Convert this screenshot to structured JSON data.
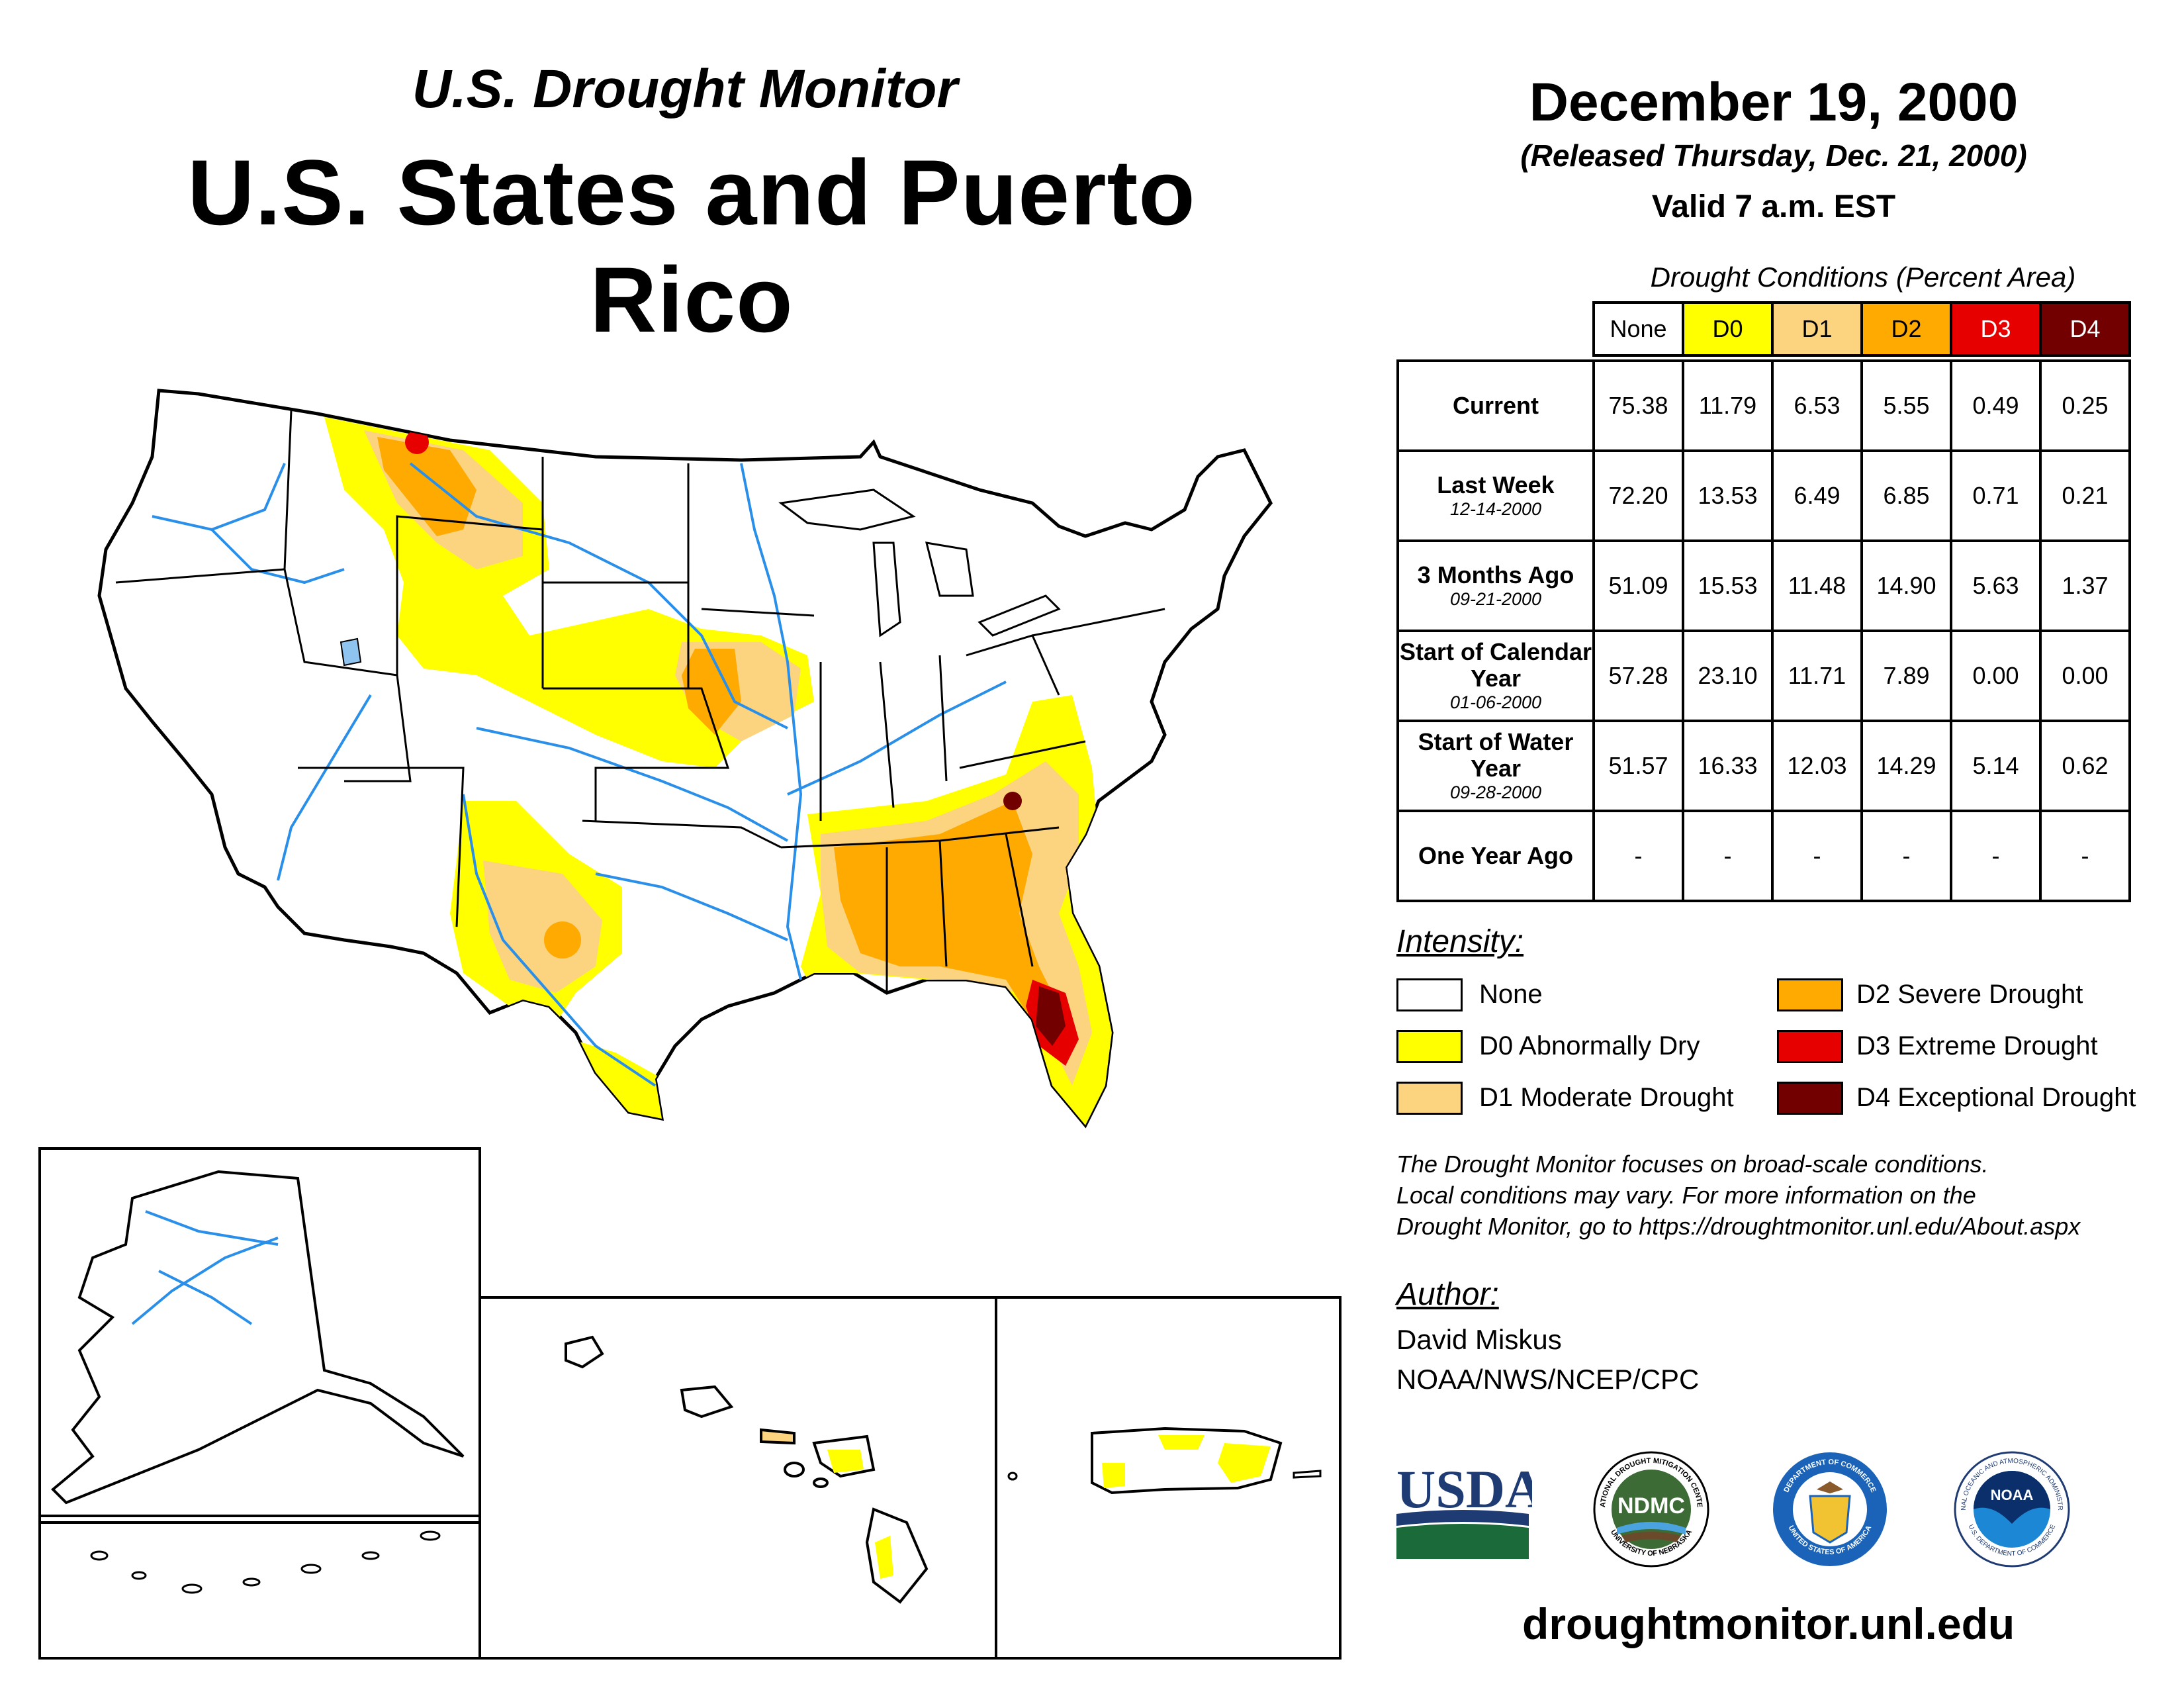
{
  "header": {
    "subtitle": "U.S. Drought Monitor",
    "title": "U.S. States and Puerto Rico",
    "date": "December 19, 2000",
    "released": "(Released Thursday, Dec. 21, 2000)",
    "valid": "Valid 7 a.m. EST"
  },
  "table": {
    "title": "Drought Conditions (Percent Area)",
    "columns": [
      "None",
      "D0",
      "D1",
      "D2",
      "D3",
      "D4"
    ],
    "rows": [
      {
        "label": "Current",
        "date": "",
        "values": [
          "75.38",
          "11.79",
          "6.53",
          "5.55",
          "0.49",
          "0.25"
        ]
      },
      {
        "label": "Last Week",
        "date": "12-14-2000",
        "values": [
          "72.20",
          "13.53",
          "6.49",
          "6.85",
          "0.71",
          "0.21"
        ]
      },
      {
        "label": "3 Months Ago",
        "date": "09-21-2000",
        "values": [
          "51.09",
          "15.53",
          "11.48",
          "14.90",
          "5.63",
          "1.37"
        ]
      },
      {
        "label": "Start of Calendar Year",
        "date": "01-06-2000",
        "values": [
          "57.28",
          "23.10",
          "11.71",
          "7.89",
          "0.00",
          "0.00"
        ]
      },
      {
        "label": "Start of Water Year",
        "date": "09-28-2000",
        "values": [
          "51.57",
          "16.33",
          "12.03",
          "14.29",
          "5.14",
          "0.62"
        ]
      },
      {
        "label": "One Year Ago",
        "date": "",
        "values": [
          "-",
          "-",
          "-",
          "-",
          "-",
          "-"
        ]
      }
    ]
  },
  "legend": {
    "title": "Intensity:",
    "items": [
      {
        "label": "None",
        "color": "#ffffff"
      },
      {
        "label": "D0 Abnormally Dry",
        "color": "#ffff00"
      },
      {
        "label": "D1 Moderate Drought",
        "color": "#fcd37f"
      },
      {
        "label": "D2 Severe Drought",
        "color": "#ffaa00"
      },
      {
        "label": "D3 Extreme Drought",
        "color": "#e60000"
      },
      {
        "label": "D4 Exceptional Drought",
        "color": "#730000"
      }
    ]
  },
  "note": {
    "line1": "The Drought Monitor focuses on broad-scale conditions.",
    "line2": "Local conditions may vary. For more information on the",
    "line3": "Drought Monitor, go to https://droughtmonitor.unl.edu/About.aspx"
  },
  "author": {
    "title": "Author:",
    "name": "David Miskus",
    "org": "NOAA/NWS/NCEP/CPC"
  },
  "logos": {
    "usda": "USDA",
    "ndmc": "NDMC",
    "ndmc_ring_top": "NATIONAL DROUGHT MITIGATION CENTER",
    "ndmc_ring_bottom": "UNIVERSITY OF NEBRASKA",
    "commerce_ring_top": "DEPARTMENT OF COMMERCE",
    "commerce_ring_bottom": "UNITED STATES OF AMERICA",
    "noaa": "NOAA",
    "noaa_ring_top": "NATIONAL OCEANIC AND ATMOSPHERIC ADMINISTRATION",
    "noaa_ring_bottom": "U.S. DEPARTMENT OF COMMERCE"
  },
  "url": "droughtmonitor.unl.edu",
  "colors": {
    "river": "#2a8fe8",
    "lake": "#8fc3f0",
    "border": "#000000"
  }
}
